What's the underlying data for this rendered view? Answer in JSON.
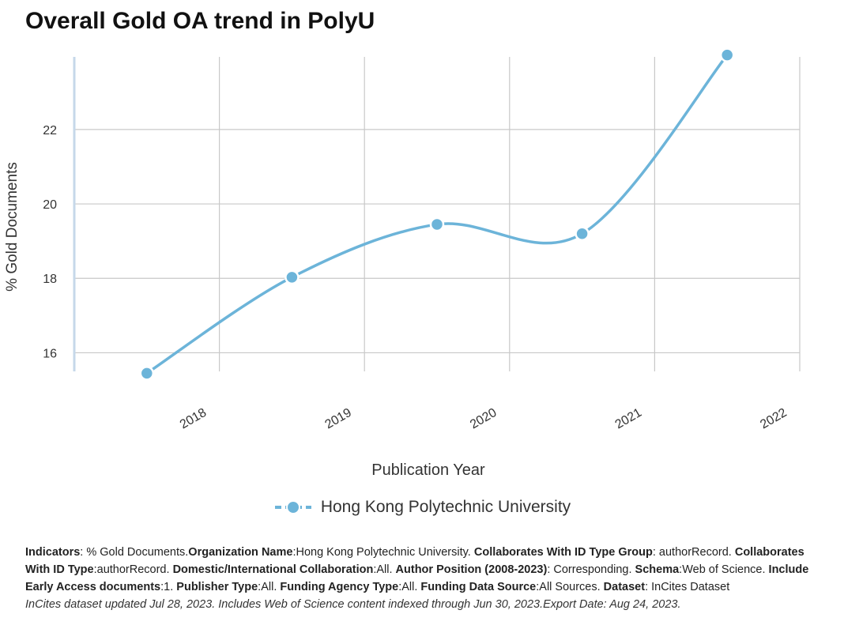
{
  "chart_data": {
    "type": "line",
    "title": "Overall Gold OA trend in PolyU",
    "xlabel": "Publication Year",
    "ylabel": "% Gold Documents",
    "x": [
      "2018",
      "2019",
      "2020",
      "2021",
      "2022"
    ],
    "series": [
      {
        "name": "Hong Kong Polytechnic University",
        "values": [
          15.45,
          18.03,
          19.45,
          19.2,
          24.0
        ],
        "color": "#6cb4d9"
      }
    ],
    "yticks": [
      16,
      18,
      20,
      22
    ],
    "ylim": [
      15.5,
      23.95
    ],
    "grid": true,
    "legend": "bottom-center"
  },
  "footer": {
    "segments": [
      {
        "label": "Indicators",
        "sep": ": ",
        "value": "% Gold Documents."
      },
      {
        "label": "Organization Name",
        "sep": ":",
        "value": "Hong Kong Polytechnic University. "
      },
      {
        "label": "Collaborates With ID Type Group",
        "sep": ": ",
        "value": "authorRecord. "
      },
      {
        "label": "Collaborates With ID Type",
        "sep": ":",
        "value": "authorRecord. "
      },
      {
        "label": "Domestic/International Collaboration",
        "sep": ":",
        "value": "All. "
      },
      {
        "label": "Author Position (2008-2023)",
        "sep": ": ",
        "value": "Corresponding. "
      },
      {
        "label": "Schema",
        "sep": ":",
        "value": "Web of Science. "
      },
      {
        "label": "Include Early Access documents",
        "sep": ":",
        "value": "1. "
      },
      {
        "label": "Publisher Type",
        "sep": ":",
        "value": "All. "
      },
      {
        "label": "Funding Agency Type",
        "sep": ":",
        "value": "All. "
      },
      {
        "label": "Funding Data Source",
        "sep": ":",
        "value": "All Sources. "
      },
      {
        "label": "Dataset",
        "sep": ": ",
        "value": "InCites Dataset"
      }
    ],
    "note": "InCites dataset updated Jul 28, 2023. Includes Web of Science content indexed through Jun 30, 2023.Export Date: Aug 24, 2023."
  }
}
